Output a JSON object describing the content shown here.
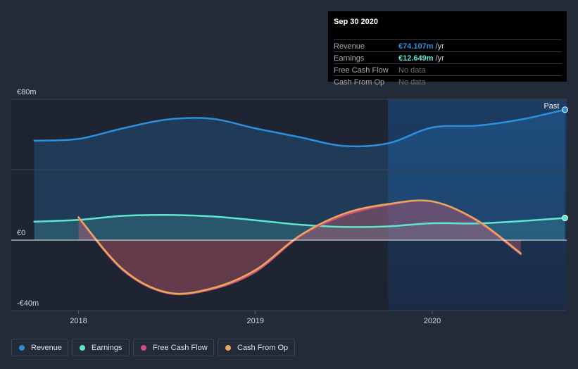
{
  "tooltip": {
    "date": "Sep 30 2020",
    "rows": [
      {
        "label": "Revenue",
        "value": "€74.107m",
        "unit": " /yr",
        "color": "#2b8fde"
      },
      {
        "label": "Earnings",
        "value": "€12.649m",
        "unit": " /yr",
        "color": "#5ee6cf"
      },
      {
        "label": "Free Cash Flow",
        "value": "No data",
        "unit": ""
      },
      {
        "label": "Cash From Op",
        "value": "No data",
        "unit": ""
      }
    ]
  },
  "past_label": "Past",
  "legend": [
    {
      "label": "Revenue",
      "color": "#2b8fde"
    },
    {
      "label": "Earnings",
      "color": "#5ee6cf"
    },
    {
      "label": "Free Cash Flow",
      "color": "#d2507f"
    },
    {
      "label": "Cash From Op",
      "color": "#e8a85a"
    }
  ],
  "chart_data": {
    "type": "line",
    "title": "",
    "xlabel": "",
    "ylabel": "",
    "x_ticks": [
      {
        "label": "2018",
        "x": 2018.0
      },
      {
        "label": "2019",
        "x": 2019.0
      },
      {
        "label": "2020",
        "x": 2020.0
      }
    ],
    "y_ticks": [
      {
        "label": "€80m",
        "y": 80
      },
      {
        "label": "€0",
        "y": 0
      },
      {
        "label": "-€40m",
        "y": -40
      }
    ],
    "xlim": [
      2017.62,
      2020.76
    ],
    "ylim": [
      -40,
      80
    ],
    "past_start": 2019.75,
    "series": [
      {
        "name": "Revenue",
        "color": "#2b8fde",
        "x": [
          2017.75,
          2018.0,
          2018.25,
          2018.5,
          2018.75,
          2019.0,
          2019.25,
          2019.5,
          2019.75,
          2020.0,
          2020.25,
          2020.5,
          2020.75
        ],
        "values": [
          56.5,
          57.5,
          63.5,
          68.5,
          69.0,
          63.5,
          58.5,
          53.5,
          55.0,
          64.0,
          65.0,
          68.5,
          74.1
        ]
      },
      {
        "name": "Earnings",
        "color": "#5ee6cf",
        "x": [
          2017.75,
          2018.0,
          2018.25,
          2018.5,
          2018.75,
          2019.0,
          2019.25,
          2019.5,
          2019.75,
          2020.0,
          2020.25,
          2020.5,
          2020.75
        ],
        "values": [
          10.5,
          11.5,
          13.8,
          14.3,
          13.5,
          11.3,
          8.8,
          7.5,
          7.8,
          9.6,
          9.5,
          10.8,
          12.6
        ]
      },
      {
        "name": "Free Cash Flow",
        "color": "#d2507f",
        "x": [
          2018.0,
          2018.25,
          2018.5,
          2018.75,
          2019.0,
          2019.25,
          2019.5,
          2019.75,
          2020.0,
          2020.25,
          2020.5
        ],
        "values": [
          12.5,
          -17.0,
          -30.0,
          -28.0,
          -18.0,
          2.0,
          14.0,
          20.0,
          22.0,
          11.0,
          -8.0
        ]
      },
      {
        "name": "Cash From Op",
        "color": "#e8a85a",
        "x": [
          2018.0,
          2018.25,
          2018.5,
          2018.75,
          2019.0,
          2019.25,
          2019.5,
          2019.75,
          2020.0,
          2020.25,
          2020.5
        ],
        "values": [
          13.0,
          -16.5,
          -29.7,
          -27.5,
          -17.0,
          2.5,
          15.0,
          20.5,
          22.0,
          11.5,
          -7.5
        ]
      }
    ],
    "end_markers": [
      {
        "series": "Revenue",
        "x": 2020.75,
        "y": 74.1
      },
      {
        "series": "Earnings",
        "x": 2020.75,
        "y": 12.6
      }
    ]
  }
}
